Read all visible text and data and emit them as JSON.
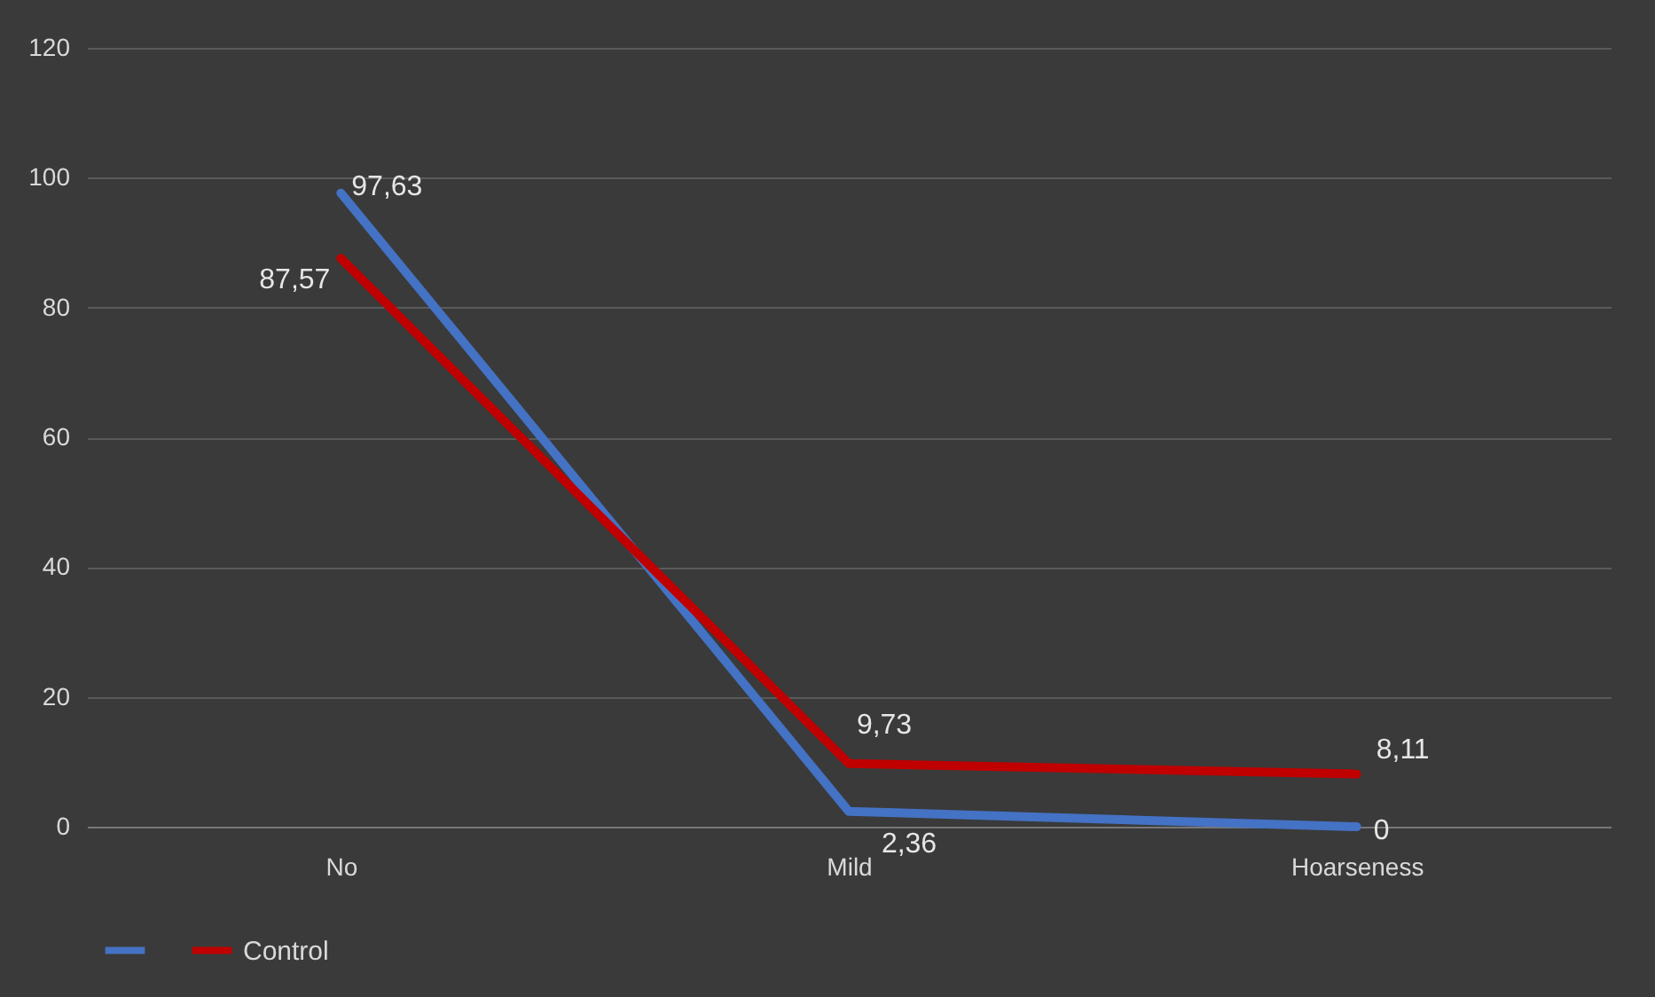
{
  "chart_data": {
    "type": "line",
    "categories": [
      "No",
      "Mild",
      "Hoarseness"
    ],
    "series": [
      {
        "color": "#4472c4",
        "values": [
          97.63,
          2.36,
          0
        ],
        "value_labels": [
          "97,63",
          "2,36",
          "0"
        ]
      },
      {
        "name": "Control",
        "color": "#c00000",
        "values": [
          87.57,
          9.73,
          8.11
        ],
        "value_labels": [
          "87,57",
          "9,73",
          "8,11"
        ]
      }
    ],
    "ylim": [
      0,
      120
    ],
    "yticks": [
      0,
      20,
      40,
      60,
      80,
      100,
      120
    ],
    "grid": "y",
    "legend": "bottom",
    "marker": "none",
    "line_style": "solid"
  }
}
